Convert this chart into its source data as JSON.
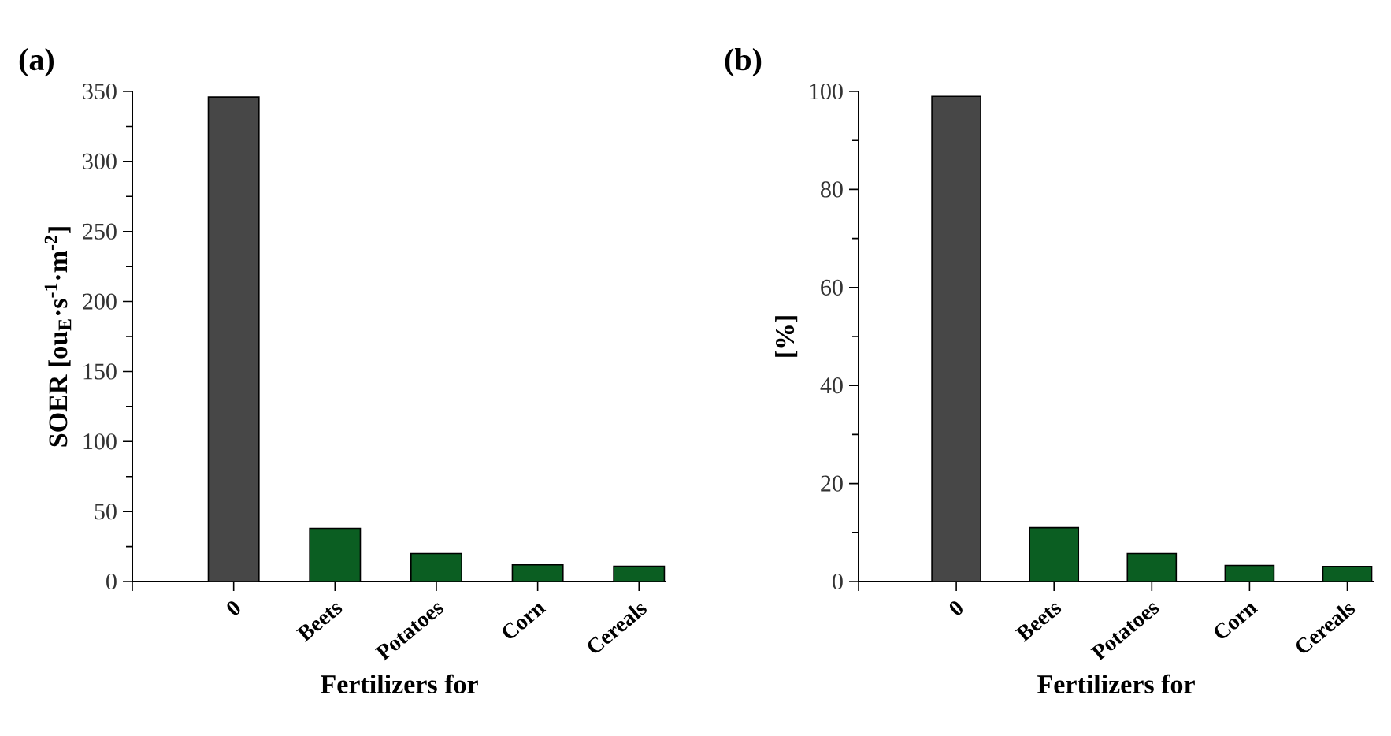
{
  "chart_data": [
    {
      "type": "bar",
      "title": "(a)",
      "xlabel": "Fertilizers for",
      "ylabel": "SOER [ou$_{E}$·s$^{-1}$·m$^{-2}$]",
      "categories": [
        null,
        "0",
        "Beets",
        "Potatoes",
        "Corn",
        "Cereals"
      ],
      "values": [
        null,
        346,
        38,
        20,
        12,
        11
      ],
      "colors": [
        "#0b5e22",
        "#474747",
        "#0b5e22",
        "#0b5e22",
        "#0b5e22",
        "#0b5e22"
      ],
      "ylim": [
        0,
        350
      ],
      "yticks": [
        0,
        50,
        100,
        150,
        200,
        250,
        300,
        350
      ]
    },
    {
      "type": "bar",
      "title": "(b)",
      "xlabel": "Fertilizers for",
      "ylabel": "[%]",
      "categories": [
        null,
        "0",
        "Beets",
        "Potatoes",
        "Corn",
        "Cereals"
      ],
      "values": [
        null,
        99,
        11,
        5.7,
        3.3,
        3.1
      ],
      "colors": [
        "#0b5e22",
        "#474747",
        "#0b5e22",
        "#0b5e22",
        "#0b5e22",
        "#0b5e22"
      ],
      "ylim": [
        0,
        100
      ],
      "yticks": [
        0,
        20,
        40,
        60,
        80,
        100
      ]
    }
  ]
}
